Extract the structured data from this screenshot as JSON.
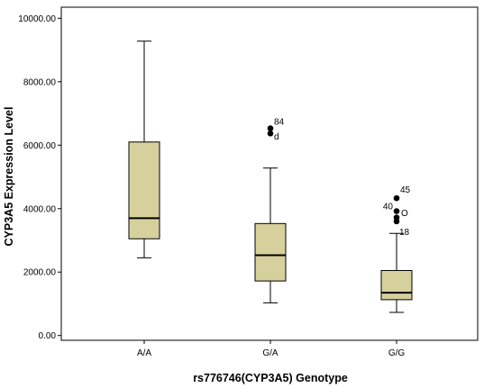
{
  "chart_data": {
    "type": "boxplot",
    "xlabel": "rs776746(CYP3A5) Genotype",
    "ylabel": "CYP3A5 Expression Level",
    "ylim": [
      -150,
      10350
    ],
    "yticks": [
      0,
      2000,
      4000,
      6000,
      8000,
      10000
    ],
    "ytick_labels": [
      "0.00",
      "2000.00",
      "4000.00",
      "6000.00",
      "8000.00",
      "10000.00"
    ],
    "grid": false,
    "box_color": "#d6d19c",
    "categories": [
      "A/A",
      "G/A",
      "G/G"
    ],
    "boxes": [
      {
        "category": "A/A",
        "min": 2450,
        "q1": 3050,
        "median": 3700,
        "q3": 6100,
        "max": 9280,
        "outliers": []
      },
      {
        "category": "G/A",
        "min": 1030,
        "q1": 1720,
        "median": 2530,
        "q3": 3530,
        "max": 5280,
        "outliers": [
          {
            "value": 6530,
            "label": "84"
          },
          {
            "value": 6370,
            "label": "d"
          }
        ]
      },
      {
        "category": "G/G",
        "min": 730,
        "q1": 1130,
        "median": 1350,
        "q3": 2050,
        "max": 3220,
        "outliers": [
          {
            "value": 4330,
            "label": "45"
          },
          {
            "value": 3920,
            "label": "40"
          },
          {
            "value": 3870,
            "label": "O"
          },
          {
            "value": 3720,
            "label": ""
          },
          {
            "value": 3600,
            "label": "18"
          }
        ]
      }
    ]
  }
}
